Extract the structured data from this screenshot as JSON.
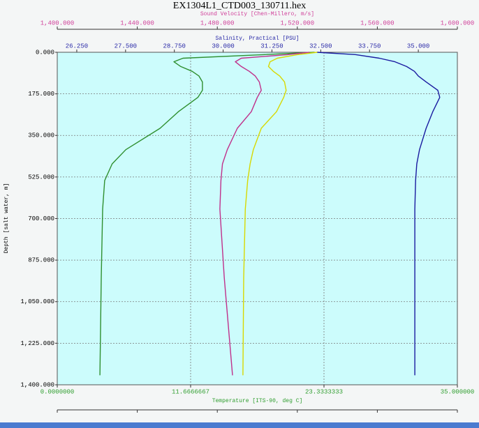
{
  "chart_data": {
    "type": "line",
    "title": "EX1304L1_CTD003_130711.hex",
    "y": [
      0,
      10,
      25,
      40,
      60,
      80,
      100,
      125,
      160,
      190,
      250,
      320,
      410,
      470,
      540,
      660,
      950,
      1360
    ],
    "ylabel": "Depth [salt water, m]",
    "ylim": [
      0,
      1400
    ],
    "invert_y": true,
    "yticks": [
      {
        "value": 0,
        "label": "0.000"
      },
      {
        "value": 175,
        "label": "175.000"
      },
      {
        "value": 350,
        "label": "350.000"
      },
      {
        "value": 525,
        "label": "525.000"
      },
      {
        "value": 700,
        "label": "700.000"
      },
      {
        "value": 875,
        "label": "875.000"
      },
      {
        "value": 1050,
        "label": "1,050.000"
      },
      {
        "value": 1225,
        "label": "1,225.000"
      },
      {
        "value": 1400,
        "label": "1,400.000"
      }
    ],
    "grid": true,
    "xlabel": "Temperature [ITS-90, deg C]",
    "xcolor": "#2f9e2f",
    "xlim": [
      0,
      35
    ],
    "xticks": [
      {
        "value": 0,
        "label": "0.0000000"
      },
      11.6666667,
      23.3333333,
      {
        "value": 35,
        "label": "35.000000"
      }
    ],
    "x2label": "Sound Velocity [Chen-Millero, m/s]",
    "x2color": "#d0409a",
    "x2lim": [
      1400,
      1600
    ],
    "x2ticks": [
      {
        "value": 1400,
        "label": "1,400.000"
      },
      {
        "value": 1440,
        "label": "1,440.000"
      },
      {
        "value": 1480,
        "label": "1,480.000"
      },
      {
        "value": 1520,
        "label": "1,520.000"
      },
      {
        "value": 1560,
        "label": "1,560.000"
      },
      {
        "value": 1600,
        "label": "1,600.000"
      }
    ],
    "x3label": "Salinity, Practical [PSU]",
    "x3color": "#2a2aa8",
    "x3lim": [
      25.75,
      36
    ],
    "x3ticks": [
      {
        "value": 26.25,
        "label": "26.250"
      },
      {
        "value": 27.5,
        "label": "27.500"
      },
      {
        "value": 28.75,
        "label": "28.750"
      },
      {
        "value": 30,
        "label": "30.000"
      },
      {
        "value": 31.25,
        "label": "31.250"
      },
      {
        "value": 32.5,
        "label": "32.500"
      },
      {
        "value": 33.75,
        "label": "33.750"
      },
      {
        "value": 35,
        "label": "35.000"
      }
    ],
    "x4color": "#e0e000",
    "x4lim": [
      0,
      5
    ],
    "x4ticks": [
      0,
      1,
      2,
      3,
      4,
      5
    ],
    "series": [
      {
        "axis": "x",
        "color": "#2f8f2f",
        "values": [
          22.5,
          18,
          11.0,
          10.2,
          10.8,
          11.8,
          12.4,
          12.7,
          12.7,
          12.3,
          10.6,
          9.0,
          6.0,
          4.8,
          4.15,
          3.97,
          3.85,
          3.73
        ]
      },
      {
        "axis": "x2",
        "color": "#c0308a",
        "values": [
          1526,
          1515,
          1492,
          1489,
          1492,
          1496,
          1499,
          1501,
          1502,
          1500,
          1497,
          1490,
          1485,
          1482.6,
          1481.8,
          1481.3,
          1483.5,
          1487.6
        ]
      },
      {
        "axis": "x3",
        "color": "#1a1aa0",
        "values": [
          32.4,
          33.4,
          34.0,
          34.4,
          34.7,
          34.9,
          35.0,
          35.2,
          35.5,
          35.55,
          35.37,
          35.2,
          35.03,
          34.96,
          34.93,
          34.91,
          34.91,
          34.91
        ]
      },
      {
        "axis": "x4",
        "color": "#d8d800",
        "values": [
          3.25,
          3.0,
          2.75,
          2.66,
          2.64,
          2.7,
          2.78,
          2.84,
          2.86,
          2.83,
          2.74,
          2.55,
          2.45,
          2.41,
          2.38,
          2.35,
          2.33,
          2.32
        ]
      }
    ]
  }
}
